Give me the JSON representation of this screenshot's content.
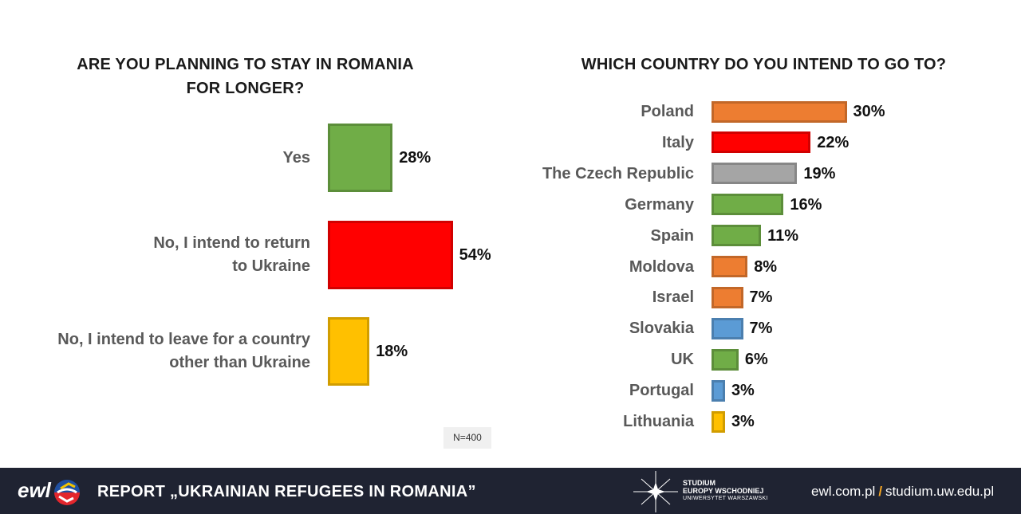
{
  "chart_data": [
    {
      "type": "bar",
      "orientation": "horizontal",
      "title": "ARE YOU PLANNING TO STAY IN ROMANIA\nFOR LONGER?",
      "categories": [
        "Yes",
        "No, I intend to return\nto Ukraine",
        "No, I intend to leave for a country\nother than Ukraine"
      ],
      "values": [
        28,
        54,
        18
      ],
      "value_labels": [
        "28%",
        "54%",
        "18%"
      ],
      "colors": [
        "#70ad47",
        "#ff0000",
        "#ffc000"
      ],
      "xlim": [
        0,
        100
      ],
      "grid": false
    },
    {
      "type": "bar",
      "orientation": "horizontal",
      "title": "WHICH COUNTRY DO YOU INTEND TO GO TO?",
      "categories": [
        "Poland",
        "Italy",
        "The Czech Republic",
        "Germany",
        "Spain",
        "Moldova",
        "Israel",
        "Slovakia",
        "UK",
        "Portugal",
        "Lithuania"
      ],
      "values": [
        30,
        22,
        19,
        16,
        11,
        8,
        7,
        7,
        6,
        3,
        3
      ],
      "value_labels": [
        "30%",
        "22%",
        "19%",
        "16%",
        "11%",
        "8%",
        "7%",
        "7%",
        "6%",
        "3%",
        "3%"
      ],
      "colors": [
        "#ed7d31",
        "#ff0000",
        "#a5a5a5",
        "#70ad47",
        "#70ad47",
        "#ed7d31",
        "#ed7d31",
        "#5b9bd5",
        "#70ad47",
        "#5b9bd5",
        "#ffc000"
      ],
      "xlim": [
        0,
        100
      ],
      "grid": false
    }
  ],
  "note": "N=400",
  "footer": {
    "logo": "ewl",
    "report_title": "REPORT „UKRAINIAN REFUGEES  IN ROMANIA”",
    "institute_line1": "STUDIUM",
    "institute_line2": "EUROPY WSCHODNIEJ",
    "institute_line3": "UNIWERSYTET WARSZAWSKI",
    "link1": "ewl.com.pl",
    "separator": "/",
    "link2": "studium.uw.edu.pl"
  }
}
